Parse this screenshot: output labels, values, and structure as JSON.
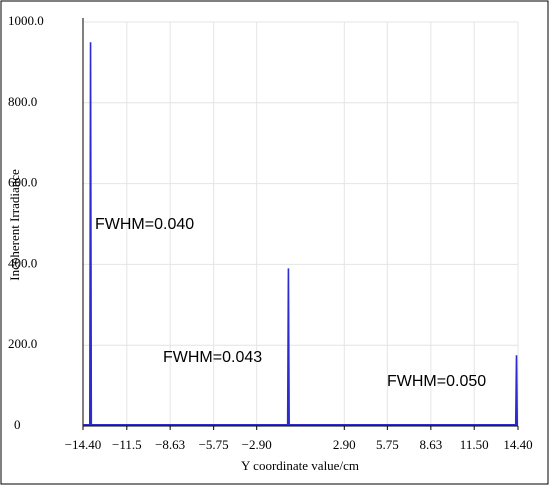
{
  "chart_data": {
    "type": "line",
    "x_label": "Y coordinate value/cm",
    "y_label": "Incoherent Irradiance",
    "x": [
      -14.4,
      -14.0,
      -13.95,
      -13.9,
      -13.85,
      -0.9,
      -0.85,
      -0.8,
      -0.75,
      14.2,
      14.25,
      14.3,
      14.35,
      14.4
    ],
    "series": [
      {
        "name": "Incoherent Irradiance",
        "color": "#2b2bd0",
        "values": [
          3,
          3,
          3,
          950,
          3,
          3,
          3,
          390,
          3,
          3,
          3,
          175,
          3,
          3
        ]
      }
    ],
    "xlim": [
      -14.4,
      14.4
    ],
    "xticks": [
      {
        "value": -14.4,
        "label": "−14.40"
      },
      {
        "value": -11.5,
        "label": "−11.5"
      },
      {
        "value": -8.63,
        "label": "−8.63"
      },
      {
        "value": -5.75,
        "label": "−5.75"
      },
      {
        "value": -2.9,
        "label": "−2.90"
      },
      {
        "value": 2.9,
        "label": "2.90"
      },
      {
        "value": 5.75,
        "label": "5.75"
      },
      {
        "value": 8.63,
        "label": "8.63"
      },
      {
        "value": 11.5,
        "label": "11.50"
      },
      {
        "value": 14.4,
        "label": "14.40"
      }
    ],
    "ylim": [
      0,
      1000
    ],
    "yticks": [
      0,
      {
        "value": 200,
        "label": "200.0"
      },
      {
        "value": 400,
        "label": "400.0"
      },
      {
        "value": 600,
        "label": "600.0"
      },
      {
        "value": 800,
        "label": "800.0"
      },
      {
        "value": 1000,
        "label": "1000.0"
      }
    ],
    "grid": true,
    "annotations": [
      "FWHM=0.040",
      "FWHM=0.043",
      "FWHM=0.050"
    ]
  }
}
